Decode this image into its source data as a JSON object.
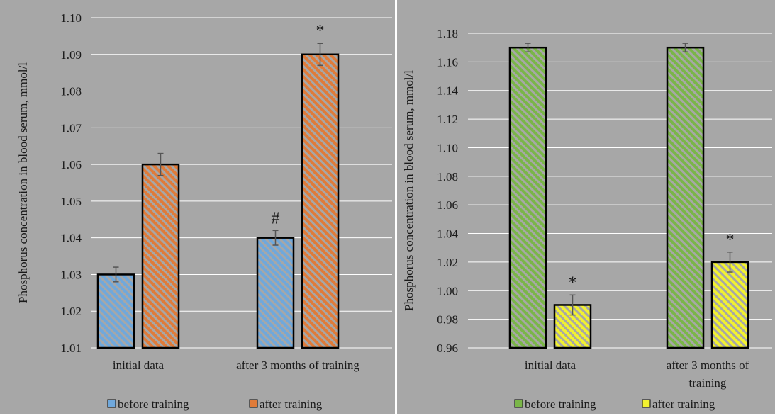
{
  "colors": {
    "panel_bg": "#a7a7a7",
    "divider": "#ffffff",
    "gridline": "#ffffff",
    "bar_outline": "#000000",
    "error_bar": "#555555",
    "hatch_blue": "#6fa8dc",
    "hatch_orange": "#e07b39",
    "hatch_green": "#7ab648",
    "hatch_yellow": "#f2f230"
  },
  "chart_data": [
    {
      "type": "bar",
      "ylabel": "Phosphorus concentration in blood serum, mmol/l",
      "ylim": [
        1.01,
        1.1
      ],
      "yticks": [
        "1.01",
        "1.02",
        "1.03",
        "1.04",
        "1.05",
        "1.06",
        "1.07",
        "1.08",
        "1.09",
        "1.10"
      ],
      "grid": true,
      "legend_position": "bottom",
      "categories": [
        [
          "initial data"
        ],
        [
          "after 3 months of training"
        ]
      ],
      "series": [
        {
          "name": "before training",
          "color": "#6fa8dc",
          "values": [
            1.03,
            1.04
          ],
          "errors": [
            0.002,
            0.002
          ],
          "marks": [
            "",
            "#"
          ]
        },
        {
          "name": "after training",
          "color": "#e07b39",
          "values": [
            1.06,
            1.09
          ],
          "errors": [
            0.003,
            0.003
          ],
          "marks": [
            "",
            "*"
          ]
        }
      ]
    },
    {
      "type": "bar",
      "ylabel": "Phosphorus concentration in blood serum, mmol/l",
      "ylim": [
        0.96,
        1.18
      ],
      "yticks": [
        "0.96",
        "0.98",
        "1.00",
        "1.02",
        "1.04",
        "1.06",
        "1.08",
        "1.10",
        "1.12",
        "1.14",
        "1.16",
        "1.18"
      ],
      "grid": true,
      "legend_position": "bottom",
      "categories": [
        [
          "initial data"
        ],
        [
          "after 3 months of",
          "training"
        ]
      ],
      "series": [
        {
          "name": "before training",
          "color": "#7ab648",
          "values": [
            1.17,
            1.17
          ],
          "errors": [
            0.003,
            0.003
          ],
          "marks": [
            "",
            ""
          ]
        },
        {
          "name": "after training",
          "color": "#f2f230",
          "values": [
            0.99,
            1.02
          ],
          "errors": [
            0.007,
            0.007
          ],
          "marks": [
            "*",
            "*"
          ]
        }
      ]
    }
  ]
}
